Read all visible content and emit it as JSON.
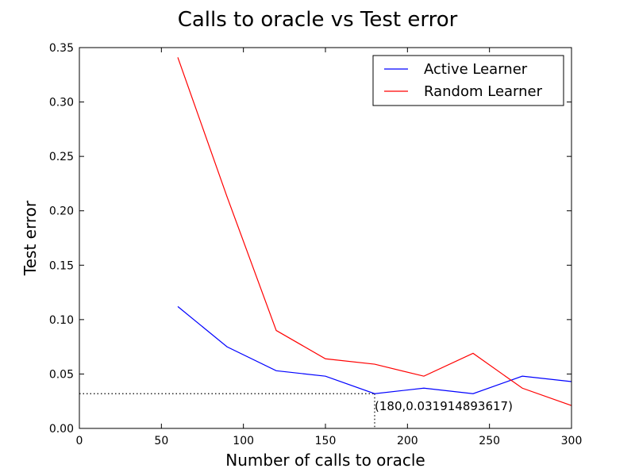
{
  "chart_data": {
    "type": "line",
    "title": "Calls to oracle vs Test error",
    "xlabel": "Number of calls to oracle",
    "ylabel": "Test error",
    "xlim": [
      0,
      300
    ],
    "ylim": [
      0,
      0.35
    ],
    "xticks": [
      "0",
      "50",
      "100",
      "150",
      "200",
      "250",
      "300"
    ],
    "yticks": [
      "0.00",
      "0.05",
      "0.10",
      "0.15",
      "0.20",
      "0.25",
      "0.30",
      "0.35"
    ],
    "grid": false,
    "legend_position": "top-right",
    "series": [
      {
        "name": "Active Learner",
        "color": "#0000ff",
        "x": [
          60,
          90,
          120,
          150,
          180,
          210,
          240,
          270,
          300
        ],
        "y": [
          0.112,
          0.075,
          0.053,
          0.048,
          0.0319,
          0.037,
          0.0319,
          0.048,
          0.043
        ]
      },
      {
        "name": "Random Learner",
        "color": "#ff0000",
        "x": [
          60,
          90,
          120,
          150,
          180,
          210,
          240,
          270,
          300
        ],
        "y": [
          0.341,
          0.213,
          0.09,
          0.064,
          0.059,
          0.048,
          0.069,
          0.037,
          0.021
        ]
      }
    ],
    "annotation": {
      "text": "(180,0.031914893617)",
      "x": 180,
      "y": 0.031914893617
    }
  }
}
